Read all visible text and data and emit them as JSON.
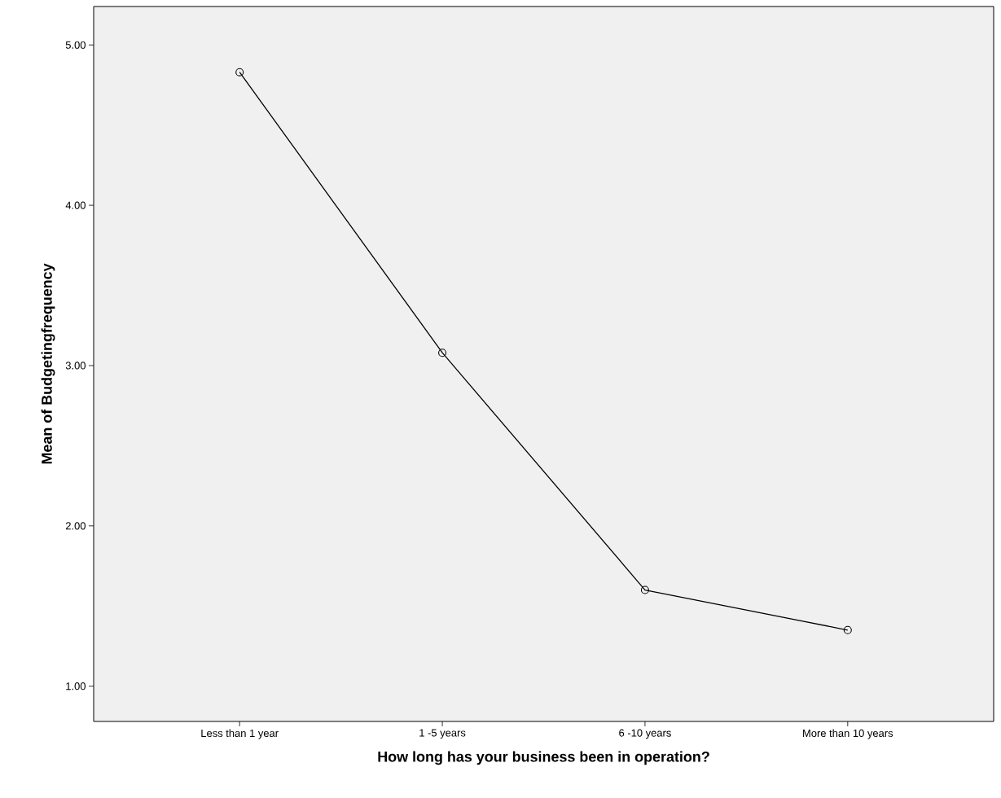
{
  "chart_data": {
    "type": "line",
    "xlabel": "How long has your business been in operation?",
    "ylabel": "Mean of Budgetingfrequency",
    "categories": [
      "Less than 1 year",
      "1 -5 years",
      "6 -10 years",
      "More than 10 years"
    ],
    "series": [
      {
        "color": "#000000",
        "values": [
          4.83,
          3.08,
          1.6,
          1.35
        ]
      }
    ],
    "ylim": [
      0.78,
      5.24
    ],
    "yticks": [
      {
        "value": 1,
        "label": "1.00"
      },
      {
        "value": 2,
        "label": "2.00"
      },
      {
        "value": 3,
        "label": "3.00"
      },
      {
        "value": 4,
        "label": "4.00"
      },
      {
        "value": 5,
        "label": "5.00"
      }
    ],
    "marker": "circle",
    "line_style": "solid"
  }
}
